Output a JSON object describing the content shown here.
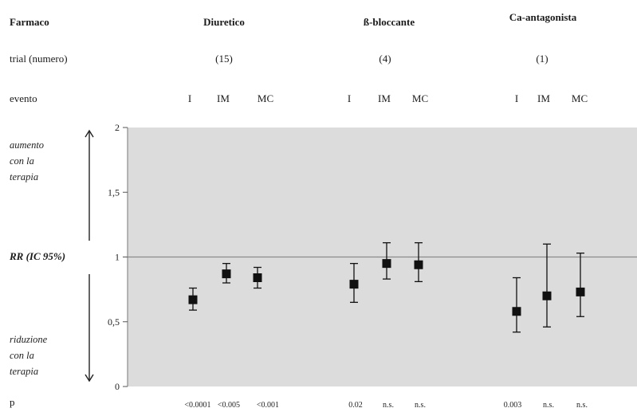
{
  "header": {
    "farmaco_label": "Farmaco",
    "trial_label": "trial (numero)",
    "evento_label": "evento",
    "p_label": "p"
  },
  "side_text": {
    "up": [
      "aumento",
      "con la",
      "terapia"
    ],
    "ylabel": "RR (IC 95%)",
    "down": [
      "riduzione",
      "con la",
      "terapia"
    ]
  },
  "groups": [
    {
      "name": "Diuretico",
      "trials": "(15)",
      "events": [
        "I",
        "IM",
        "MC"
      ],
      "p": [
        "<0.0001",
        "<0.005",
        "<0.001"
      ]
    },
    {
      "name": "ß-bloccante",
      "trials": "(4)",
      "events": [
        "I",
        "IM",
        "MC"
      ],
      "p": [
        "0.02",
        "n.s.",
        "n.s."
      ]
    },
    {
      "name": "Ca-antagonista",
      "trials": "(1)",
      "events": [
        "I",
        "IM",
        "MC"
      ],
      "p": [
        "0.003",
        "n.s.",
        "n.s."
      ]
    }
  ],
  "colors": {
    "plot_bg": "#dcdcdc",
    "marker": "#111111",
    "refline": "#8a8a8a"
  },
  "chart_data": {
    "type": "scatter",
    "ylabel": "RR (IC 95%)",
    "ylim": [
      0,
      2
    ],
    "yticks": [
      "0",
      "0,5",
      "1",
      "1,5",
      "2"
    ],
    "reference_line": 1,
    "points": [
      {
        "group": "Diuretico",
        "event": "I",
        "rr": 0.67,
        "lo": 0.59,
        "hi": 0.76
      },
      {
        "group": "Diuretico",
        "event": "IM",
        "rr": 0.87,
        "lo": 0.8,
        "hi": 0.95
      },
      {
        "group": "Diuretico",
        "event": "MC",
        "rr": 0.84,
        "lo": 0.76,
        "hi": 0.92
      },
      {
        "group": "ß-bloccante",
        "event": "I",
        "rr": 0.79,
        "lo": 0.65,
        "hi": 0.95
      },
      {
        "group": "ß-bloccante",
        "event": "IM",
        "rr": 0.95,
        "lo": 0.83,
        "hi": 1.11
      },
      {
        "group": "ß-bloccante",
        "event": "MC",
        "rr": 0.94,
        "lo": 0.81,
        "hi": 1.11
      },
      {
        "group": "Ca-antagonista",
        "event": "I",
        "rr": 0.58,
        "lo": 0.42,
        "hi": 0.84
      },
      {
        "group": "Ca-antagonista",
        "event": "IM",
        "rr": 0.7,
        "lo": 0.46,
        "hi": 1.1
      },
      {
        "group": "Ca-antagonista",
        "event": "MC",
        "rr": 0.73,
        "lo": 0.54,
        "hi": 1.03
      }
    ],
    "grid": false
  }
}
